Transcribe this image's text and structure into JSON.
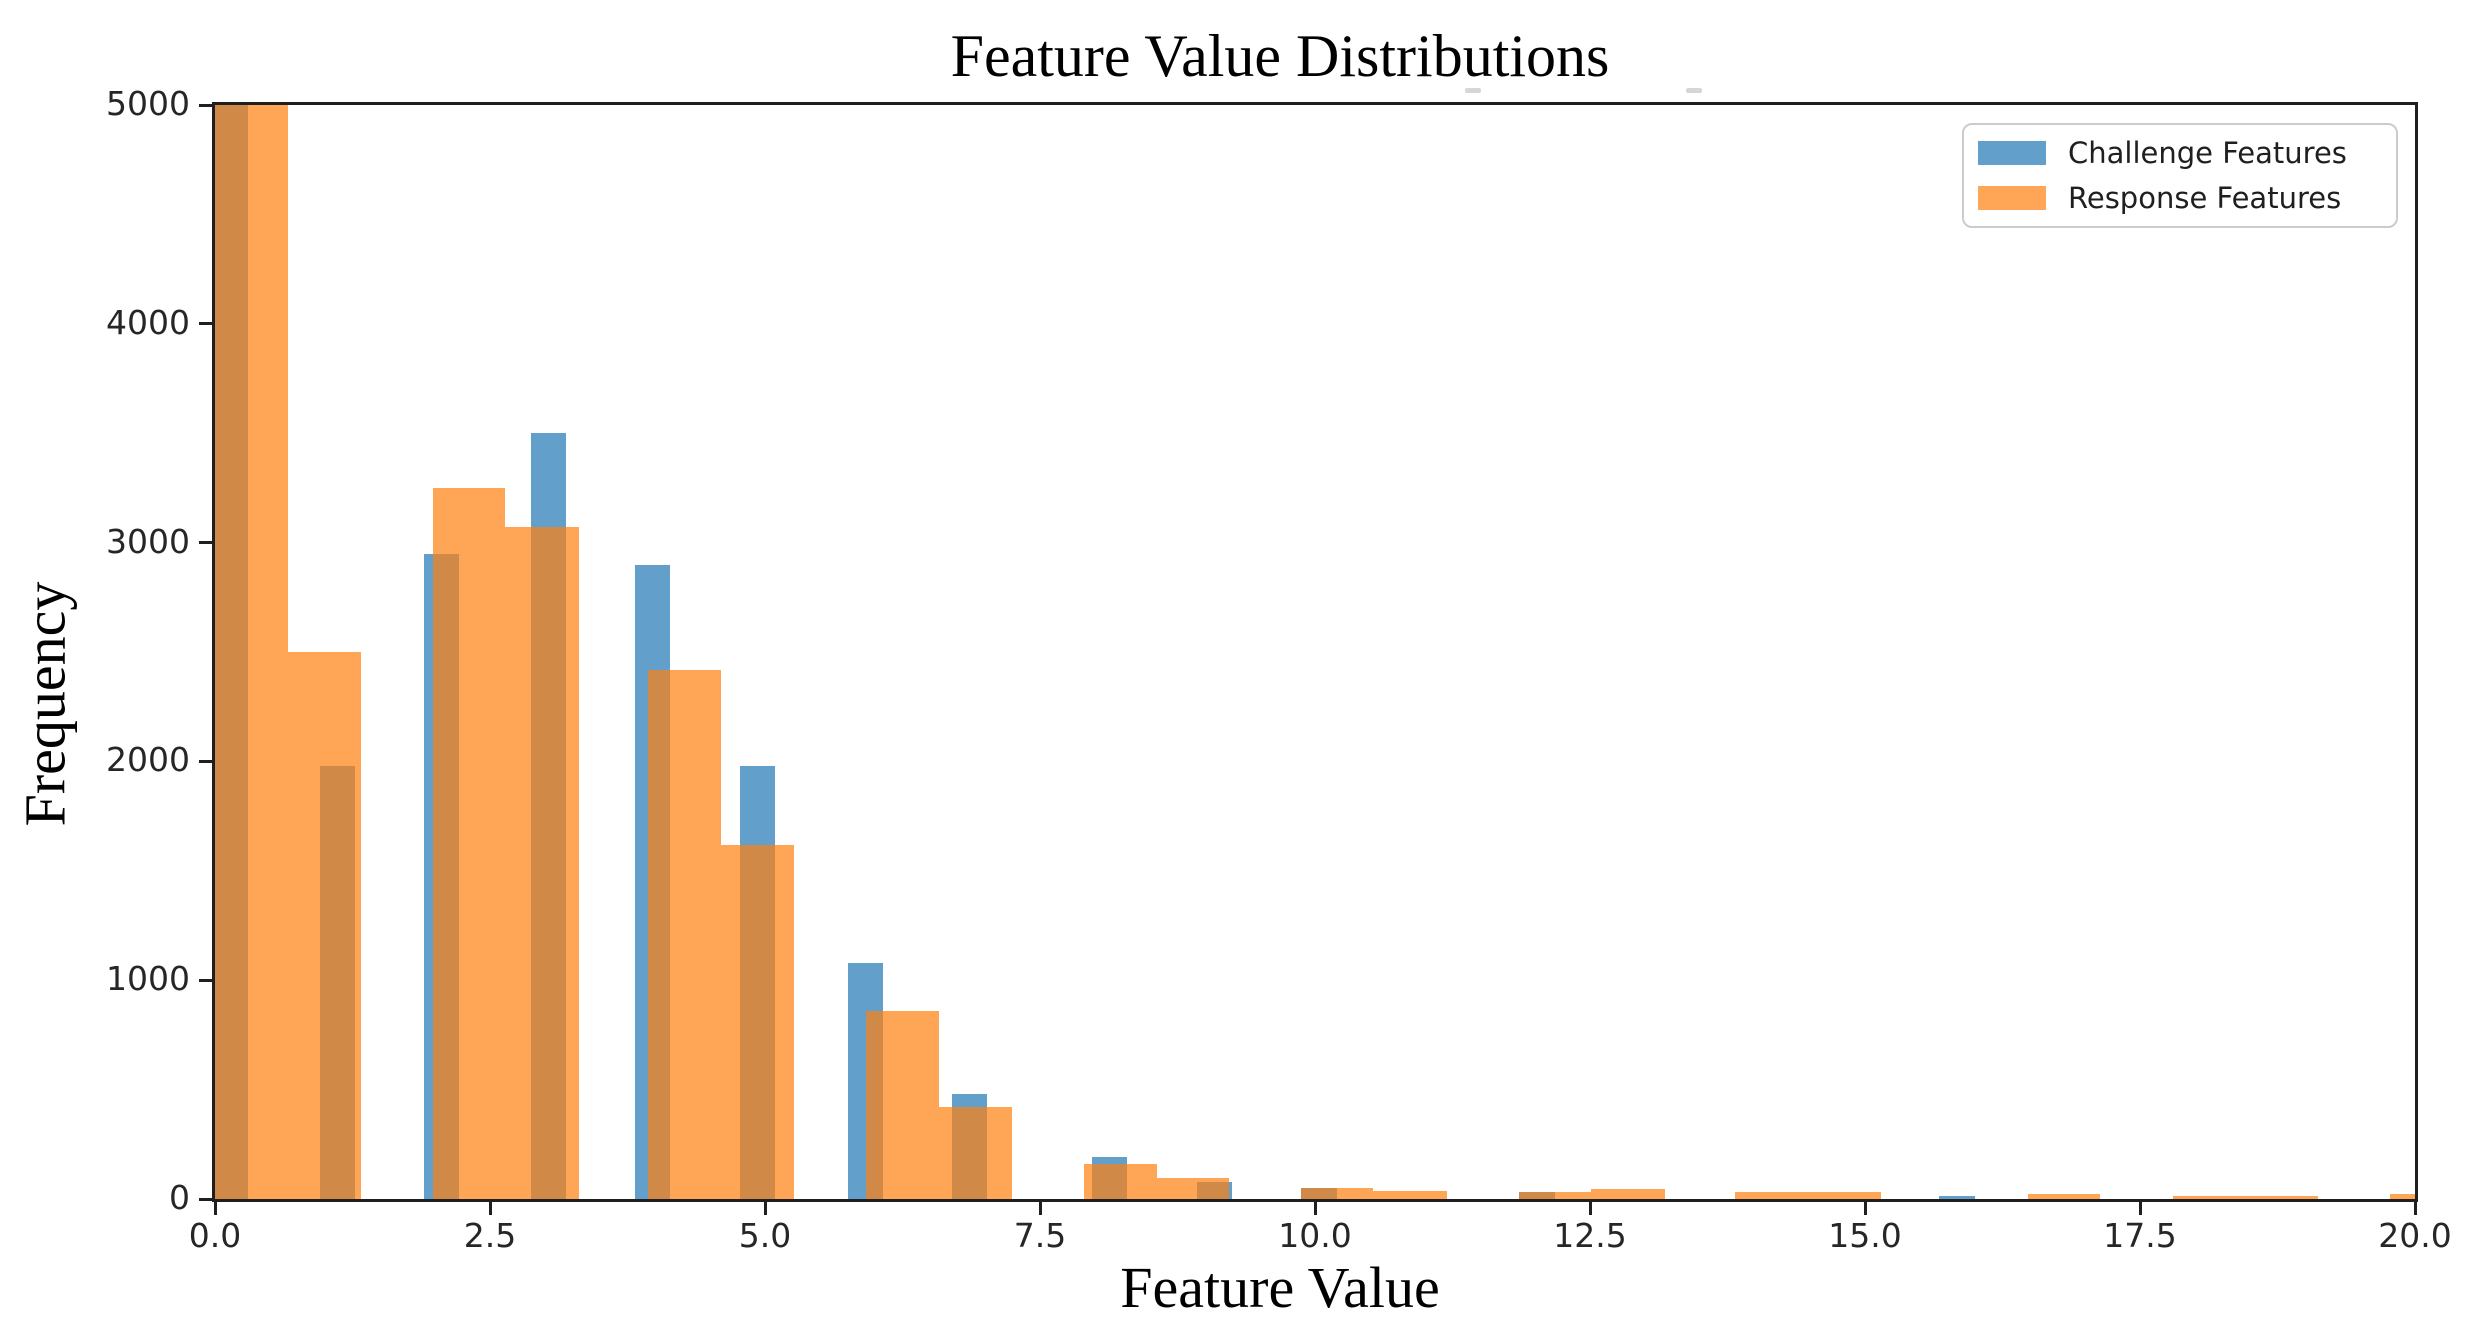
{
  "chart_data": {
    "type": "bar",
    "subtype": "overlaid-histograms",
    "title": "Feature Value Distributions",
    "xlabel": "Feature Value",
    "ylabel": "Frequency",
    "xlim": [
      0,
      20
    ],
    "ylim": [
      0,
      5000
    ],
    "grid": false,
    "legend_position": "upper right",
    "x_ticks": [
      {
        "v": 0.0,
        "label": "0.0"
      },
      {
        "v": 2.5,
        "label": "2.5"
      },
      {
        "v": 5.0,
        "label": "5.0"
      },
      {
        "v": 7.5,
        "label": "7.5"
      },
      {
        "v": 10.0,
        "label": "10.0"
      },
      {
        "v": 12.5,
        "label": "12.5"
      },
      {
        "v": 15.0,
        "label": "15.0"
      },
      {
        "v": 17.5,
        "label": "17.5"
      },
      {
        "v": 20.0,
        "label": "20.0"
      }
    ],
    "y_ticks": [
      {
        "v": 0,
        "label": "0"
      },
      {
        "v": 1000,
        "label": "1000"
      },
      {
        "v": 2000,
        "label": "2000"
      },
      {
        "v": 3000,
        "label": "3000"
      },
      {
        "v": 4000,
        "label": "4000"
      },
      {
        "v": 5000,
        "label": "5000"
      }
    ],
    "note": "First bar of each series exceeds the y-axis maximum and is clipped at 5000. Bars given as [x_start, x_end, frequency].",
    "series": [
      {
        "name": "Challenge Features",
        "swatch": "#62a0cb",
        "fill": "#62a0cb",
        "fill_alpha": 1.0,
        "bars": [
          [
            0.0,
            0.3,
            5000
          ],
          [
            0.95,
            1.27,
            1980
          ],
          [
            1.9,
            2.22,
            2950
          ],
          [
            2.87,
            3.19,
            3500
          ],
          [
            3.82,
            4.14,
            2900
          ],
          [
            4.77,
            5.09,
            1980
          ],
          [
            5.75,
            6.07,
            1080
          ],
          [
            6.7,
            7.02,
            480
          ],
          [
            7.97,
            8.29,
            190
          ],
          [
            8.93,
            9.25,
            80
          ],
          [
            9.87,
            10.2,
            50
          ],
          [
            11.85,
            12.18,
            30
          ],
          [
            15.67,
            16.0,
            15
          ]
        ]
      },
      {
        "name": "Response Features",
        "swatch": "#ffa556",
        "fill": "#ff7f0e",
        "fill_alpha": 0.7,
        "bars": [
          [
            0.0,
            0.66,
            5000
          ],
          [
            0.66,
            1.33,
            2500
          ],
          [
            1.98,
            2.64,
            3250
          ],
          [
            2.64,
            3.31,
            3070
          ],
          [
            3.94,
            4.6,
            2420
          ],
          [
            4.6,
            5.26,
            1620
          ],
          [
            5.92,
            6.58,
            860
          ],
          [
            6.58,
            7.25,
            420
          ],
          [
            7.9,
            8.56,
            160
          ],
          [
            8.56,
            9.22,
            95
          ],
          [
            9.87,
            10.53,
            50
          ],
          [
            10.53,
            11.2,
            35
          ],
          [
            11.85,
            12.51,
            30
          ],
          [
            12.51,
            13.18,
            45
          ],
          [
            13.82,
            14.48,
            32
          ],
          [
            14.48,
            15.15,
            30
          ],
          [
            16.48,
            17.14,
            22
          ],
          [
            17.8,
            18.46,
            12
          ],
          [
            18.46,
            19.12,
            12
          ],
          [
            19.77,
            20.0,
            25
          ]
        ]
      }
    ]
  }
}
